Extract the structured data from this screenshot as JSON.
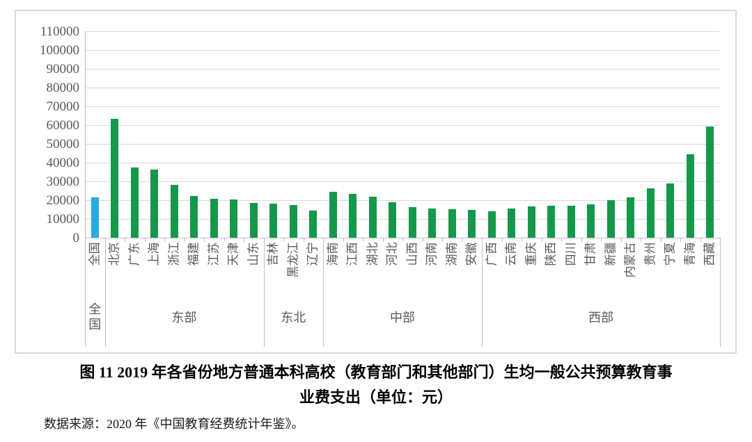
{
  "figure": {
    "title_line1": "图 11  2019 年各省份地方普通本科高校（教育部门和其他部门）生均一般公共预算教育事",
    "title_line2": "业费支出（单位：元）",
    "source": "数据来源：2020 年《中国教育经费统计年鉴》。"
  },
  "chart_data": {
    "type": "bar",
    "title": "图 11 2019 年各省份地方普通本科高校（教育部门和其他部门）生均一般公共预算教育事业费支出（单位：元）",
    "unit": "元",
    "xlabel": "",
    "ylabel": "",
    "ylim": [
      0,
      110000
    ],
    "ytick_step": 10000,
    "grid": true,
    "legend_position": "none",
    "colors": {
      "national_bar": "#29abe2",
      "province_bar": "#16984b",
      "gridline": "#d9d9d9",
      "axis": "#bfbfbf",
      "tick_text": "#595959"
    },
    "groups": [
      {
        "name": "全国",
        "categories": [
          "全国"
        ],
        "values": [
          21300
        ]
      },
      {
        "name": "东部",
        "categories": [
          "北京",
          "广东",
          "上海",
          "浙江",
          "福建",
          "江苏",
          "天津",
          "山东"
        ],
        "values": [
          63300,
          37400,
          36400,
          28000,
          22400,
          20800,
          20400,
          18400
        ]
      },
      {
        "name": "东北",
        "categories": [
          "吉林",
          "黑龙江",
          "辽宁"
        ],
        "values": [
          18000,
          17400,
          14600
        ]
      },
      {
        "name": "中部",
        "categories": [
          "海南",
          "江西",
          "湖北",
          "河北",
          "山西",
          "河南",
          "湖南",
          "安徽"
        ],
        "values": [
          24500,
          23200,
          22000,
          18900,
          16300,
          15700,
          15300,
          14900
        ]
      },
      {
        "name": "西部",
        "categories": [
          "广西",
          "云南",
          "重庆",
          "陕西",
          "四川",
          "甘肃",
          "新疆",
          "内蒙古",
          "贵州",
          "宁夏",
          "青海",
          "西藏"
        ],
        "values": [
          14200,
          15400,
          16700,
          16900,
          17200,
          17600,
          19900,
          21500,
          26300,
          28900,
          44400,
          59400
        ]
      }
    ]
  }
}
